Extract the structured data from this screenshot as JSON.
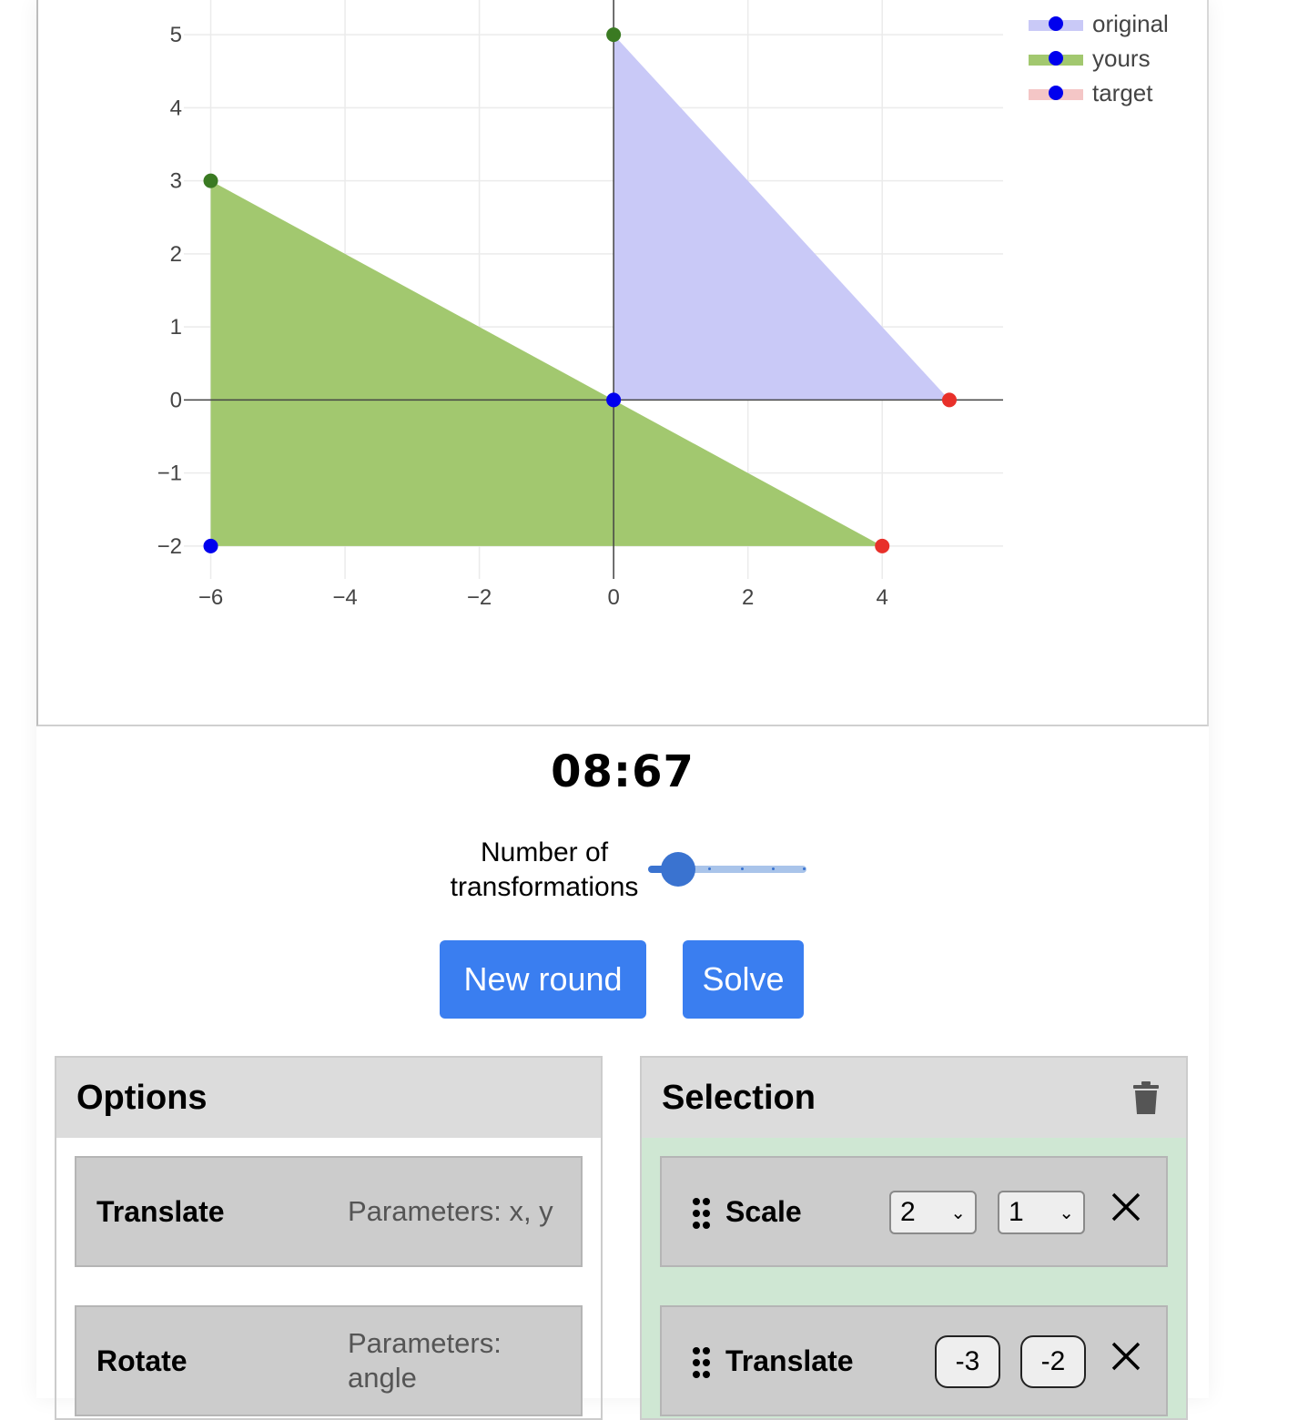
{
  "timer": "08:67",
  "slider": {
    "label": "Number of transformations",
    "value": 1,
    "min": 1,
    "max": 5
  },
  "buttons": {
    "new_round": "New round",
    "solve": "Solve"
  },
  "options": {
    "title": "Options",
    "items": [
      {
        "name": "Translate",
        "params": "Parameters: x, y"
      },
      {
        "name": "Rotate",
        "params": "Parameters: angle"
      }
    ]
  },
  "selection": {
    "title": "Selection",
    "items": [
      {
        "name": "Scale",
        "values": [
          "2",
          "1"
        ],
        "kind": "select"
      },
      {
        "name": "Translate",
        "values": [
          "-3",
          "-2"
        ],
        "kind": "number"
      }
    ]
  },
  "colors": {
    "button": "#3a7ef0",
    "selection_bg": "#cfe7d3",
    "original_fill": "#c9c9f7",
    "yours_fill": "#a2c86f",
    "target_fill": "#f4c6c6"
  },
  "chart_data": {
    "type": "scatter",
    "xlim": [
      -6.4,
      5.8
    ],
    "ylim": [
      -2.45,
      5.5
    ],
    "x_ticks": [
      -6,
      -4,
      -2,
      0,
      2,
      4
    ],
    "x_tick_labels": [
      "−6",
      "−4",
      "−2",
      "0",
      "2",
      "4"
    ],
    "y_ticks": [
      -2,
      -1,
      0,
      1,
      2,
      3,
      4,
      5
    ],
    "y_tick_labels": [
      "−2",
      "−1",
      "0",
      "1",
      "2",
      "3",
      "4",
      "5"
    ],
    "grid": true,
    "legend_position": "top-right",
    "series": [
      {
        "name": "original",
        "fill": "#c9c9f7",
        "points": [
          [
            0,
            0
          ],
          [
            5,
            0
          ],
          [
            0,
            5
          ]
        ],
        "point_colors": [
          "#0000ee",
          "#e8302a",
          "#3a7a22"
        ]
      },
      {
        "name": "yours",
        "fill": "#a2c86f",
        "points": [
          [
            -6,
            -2
          ],
          [
            4,
            -2
          ],
          [
            -6,
            3
          ]
        ],
        "point_colors": [
          "#0000ee",
          "#e8302a",
          "#3a7a22"
        ]
      },
      {
        "name": "target",
        "fill": "#f4c6c6",
        "points": [
          [
            -6,
            -2
          ],
          [
            4,
            -2
          ],
          [
            -6,
            3
          ]
        ],
        "point_colors": [
          "#0000ee",
          "#e8302a",
          "#3a7a22"
        ]
      }
    ]
  }
}
